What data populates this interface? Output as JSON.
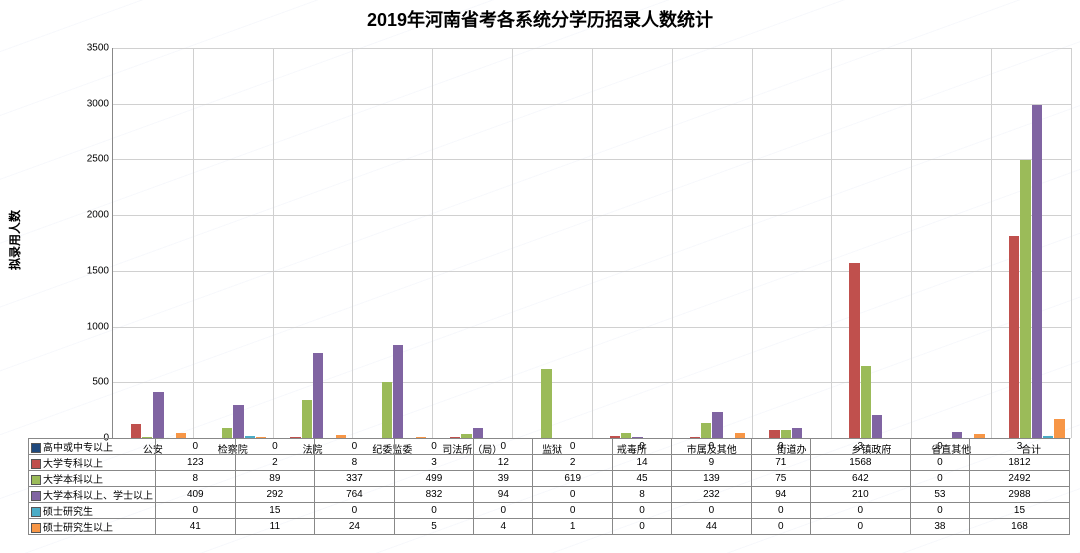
{
  "title": "2019年河南省考各系统分学历招录人数统计",
  "ylabel": "拟录用人数",
  "structure_type": "grouped-bar-with-table",
  "ymax": 3500,
  "ytick_step": 500,
  "background_color": "#ffffff",
  "grid_color": "#d0d0d0",
  "axis_color": "#888888",
  "title_fontsize": 18,
  "label_fontsize": 10,
  "categories": [
    "公安",
    "检察院",
    "法院",
    "纪委监委",
    "司法所（局）",
    "监狱",
    "戒毒所",
    "市属及其他",
    "街道办",
    "乡镇政府",
    "省直其他",
    "合计"
  ],
  "series": [
    {
      "name": "高中或中专以上",
      "color": "#1f497d",
      "values": [
        0,
        0,
        0,
        0,
        0,
        0,
        0,
        0,
        0,
        3,
        0,
        3
      ]
    },
    {
      "name": "大学专科以上",
      "color": "#c0504d",
      "values": [
        123,
        2,
        8,
        3,
        12,
        2,
        14,
        9,
        71,
        1568,
        0,
        1812
      ]
    },
    {
      "name": "大学本科以上",
      "color": "#9bbb59",
      "values": [
        8,
        89,
        337,
        499,
        39,
        619,
        45,
        139,
        75,
        642,
        0,
        2492
      ]
    },
    {
      "name": "大学本科以上、学士以上",
      "color": "#8064a2",
      "values": [
        409,
        292,
        764,
        832,
        94,
        0,
        8,
        232,
        94,
        210,
        53,
        2988
      ]
    },
    {
      "name": "硕士研究生",
      "color": "#4bacc6",
      "values": [
        0,
        15,
        0,
        0,
        0,
        0,
        0,
        0,
        0,
        0,
        0,
        15
      ]
    },
    {
      "name": "硕士研究生以上",
      "color": "#f79646",
      "values": [
        41,
        11,
        24,
        5,
        4,
        1,
        0,
        44,
        0,
        0,
        38,
        168
      ]
    }
  ]
}
